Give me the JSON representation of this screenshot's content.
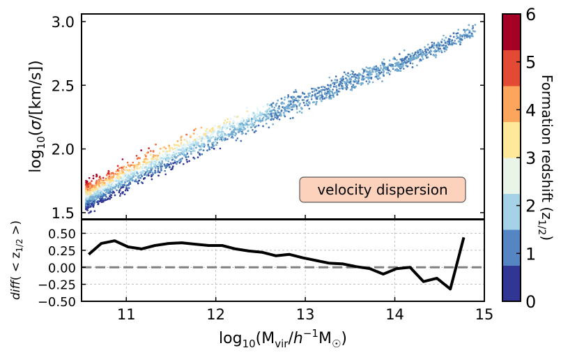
{
  "chart_data": [
    {
      "type": "scatter",
      "panel": "top",
      "xlabel": "log10(Mvir/h^-1 M⊙)",
      "ylabel": "log10(σ/[km/s])",
      "xlim": [
        10.5,
        15.0
      ],
      "ylim": [
        1.45,
        3.06
      ],
      "yticks": [
        "1.5",
        "2.0",
        "2.5",
        "3.0"
      ],
      "yticks_values": [
        1.5,
        2.0,
        2.5,
        3.0
      ],
      "annotation": "velocity dispersion",
      "annotation_color": "#fcd2bd",
      "trend_x": [
        10.55,
        11.0,
        11.5,
        12.0,
        12.5,
        13.0,
        13.5,
        14.0,
        14.5,
        14.9
      ],
      "trend_y": [
        1.62,
        1.78,
        1.95,
        2.1,
        2.25,
        2.39,
        2.53,
        2.66,
        2.8,
        2.93
      ],
      "color_gradient_note": "scatter points coloured by formation redshift; high z1/2 (red) above the relation at low mass, low z1/2 (blue) below"
    },
    {
      "type": "line",
      "panel": "bottom",
      "xlabel": "log10(Mvir/h^-1 M⊙)",
      "ylabel": "diff(<z1/2>)",
      "xlim": [
        10.5,
        15.0
      ],
      "ylim": [
        -0.5,
        0.7
      ],
      "xticks": [
        "11",
        "12",
        "13",
        "14",
        "15"
      ],
      "xticks_values": [
        11,
        12,
        13,
        14,
        15
      ],
      "yticks": [
        "−0.50",
        "−0.25",
        "0.00",
        "0.25",
        "0.50"
      ],
      "yticks_values": [
        -0.5,
        -0.25,
        0.0,
        0.25,
        0.5
      ],
      "reference_line": 0.0,
      "series": [
        {
          "name": "diff",
          "x": [
            10.58,
            10.72,
            10.87,
            11.02,
            11.17,
            11.32,
            11.47,
            11.62,
            11.77,
            11.92,
            12.07,
            12.22,
            12.37,
            12.52,
            12.67,
            12.82,
            12.97,
            13.12,
            13.27,
            13.42,
            13.57,
            13.72,
            13.87,
            14.02,
            14.17,
            14.32,
            14.47,
            14.62,
            14.77
          ],
          "y": [
            0.19,
            0.35,
            0.39,
            0.3,
            0.27,
            0.32,
            0.35,
            0.36,
            0.34,
            0.32,
            0.32,
            0.27,
            0.24,
            0.22,
            0.17,
            0.19,
            0.14,
            0.1,
            0.06,
            0.05,
            0.01,
            -0.02,
            -0.1,
            -0.02,
            0.0,
            -0.21,
            -0.16,
            -0.32,
            0.44
          ]
        }
      ]
    },
    {
      "type": "colorbar",
      "label": "Formation redshift (z1/2)",
      "ticks": [
        "0",
        "1",
        "2",
        "3",
        "4",
        "5",
        "6"
      ],
      "ticks_values": [
        0,
        1,
        2,
        3,
        4,
        5,
        6
      ],
      "colors": [
        "#313695",
        "#4575b4",
        "#74add1",
        "#abd9e9",
        "#e0f3f8",
        "#fee090",
        "#fdae61",
        "#f46d43",
        "#d73027",
        "#a50026"
      ],
      "bins": [
        "#313695",
        "#5585c2",
        "#a5d2e6",
        "#eaf5e9",
        "#fee99a",
        "#fca65d",
        "#e34a33",
        "#a50026"
      ]
    }
  ],
  "labels": {
    "xaxis": "log₁₀(M_vir/h⁻¹M_☉)",
    "yaxis_top": "log₁₀(σ/[km/s])",
    "yaxis_bottom": "diff(< z_{1/2} >)",
    "colorbar": "Formation redshift (z_{1/2})"
  }
}
